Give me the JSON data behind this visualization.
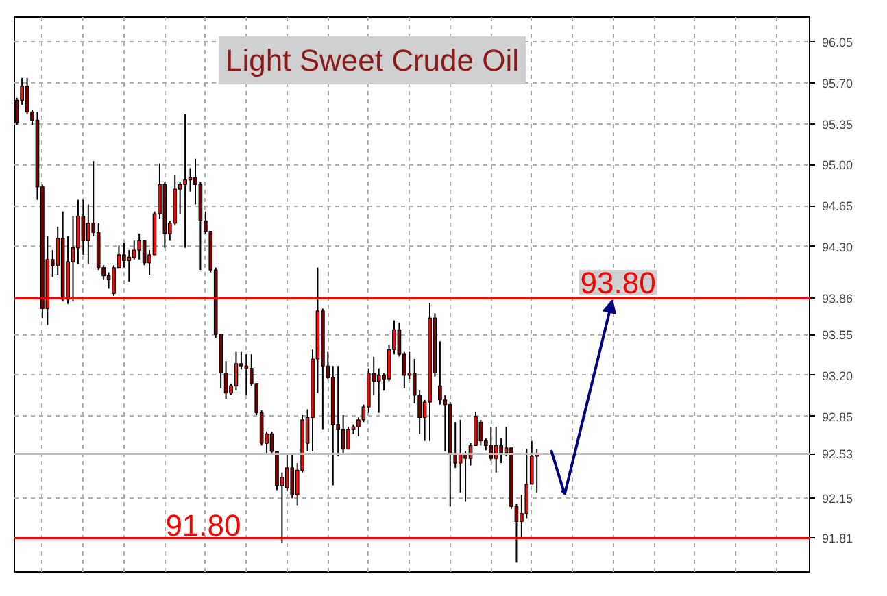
{
  "chart_data": {
    "type": "candlestick",
    "title": "Light Sweet Crude Oil",
    "categories": [
      null,
      null,
      null,
      null,
      null,
      null,
      null,
      null,
      null,
      null,
      null,
      null,
      null,
      null,
      null,
      null,
      null,
      null,
      null,
      null,
      null,
      null,
      null,
      null,
      null,
      null,
      null,
      null,
      null,
      null,
      null,
      null,
      null,
      null,
      null,
      null,
      null,
      null,
      null,
      null,
      null,
      null,
      null,
      null,
      null,
      null,
      null,
      null,
      null,
      null,
      null,
      null,
      null,
      null,
      null,
      null,
      null,
      null,
      null,
      null,
      null,
      null,
      null,
      null,
      null,
      null,
      null,
      null,
      null,
      null,
      null,
      null,
      null,
      null,
      null,
      null,
      null,
      null,
      null,
      null,
      null,
      null,
      null,
      null,
      null,
      null,
      null,
      null,
      null,
      null,
      null,
      null,
      null,
      null,
      null,
      null,
      null,
      null,
      null,
      null,
      null,
      null,
      null,
      null,
      null,
      null,
      null,
      null,
      null,
      null,
      null,
      null,
      null,
      null,
      null,
      null,
      null,
      null,
      null,
      null,
      null,
      null,
      null,
      null,
      null,
      null,
      null,
      null,
      null,
      null,
      null,
      null,
      null,
      null,
      null,
      null,
      null,
      null,
      null,
      null,
      null,
      null,
      null,
      null,
      null,
      null,
      null,
      null,
      null,
      null,
      null,
      null,
      null,
      null,
      null,
      null
    ],
    "ohlc": [
      [
        95.55,
        95.57,
        95.34,
        95.36
      ],
      [
        95.55,
        95.74,
        95.51,
        95.67
      ],
      [
        95.67,
        95.74,
        95.43,
        95.45
      ],
      [
        95.45,
        95.47,
        95.34,
        95.38
      ],
      [
        95.38,
        95.45,
        94.7,
        94.81
      ],
      [
        94.81,
        94.83,
        93.69,
        93.77
      ],
      [
        93.77,
        94.39,
        93.63,
        94.19
      ],
      [
        94.19,
        94.27,
        94.04,
        94.14
      ],
      [
        94.14,
        94.47,
        94.06,
        94.37
      ],
      [
        94.37,
        94.6,
        93.83,
        93.85
      ],
      [
        93.85,
        94.39,
        93.81,
        94.17
      ],
      [
        94.17,
        94.56,
        93.83,
        94.29
      ],
      [
        94.29,
        94.7,
        94.15,
        94.56
      ],
      [
        94.56,
        94.7,
        94.23,
        94.35
      ],
      [
        94.35,
        94.66,
        94.15,
        94.5
      ],
      [
        94.5,
        95.03,
        94.39,
        94.42
      ],
      [
        94.42,
        94.5,
        94.1,
        94.12
      ],
      [
        94.12,
        94.14,
        94.02,
        94.05
      ],
      [
        94.05,
        94.08,
        93.94,
        94.02
      ],
      [
        93.9,
        94.14,
        93.88,
        94.12
      ],
      [
        94.12,
        94.31,
        94.12,
        94.23
      ],
      [
        94.23,
        94.33,
        94.12,
        94.18
      ],
      [
        94.18,
        94.27,
        94.0,
        94.21
      ],
      [
        94.21,
        94.35,
        94.19,
        94.27
      ],
      [
        94.27,
        94.41,
        94.19,
        94.35
      ],
      [
        94.35,
        94.35,
        94.14,
        94.16
      ],
      [
        94.16,
        94.27,
        94.06,
        94.23
      ],
      [
        94.23,
        94.6,
        94.23,
        94.58
      ],
      [
        94.58,
        95.01,
        94.54,
        94.83
      ],
      [
        94.83,
        94.85,
        94.29,
        94.41
      ],
      [
        94.41,
        94.52,
        94.35,
        94.5
      ],
      [
        94.5,
        94.91,
        94.48,
        94.79
      ],
      [
        94.79,
        94.85,
        94.58,
        94.83
      ],
      [
        94.83,
        95.43,
        94.29,
        94.87
      ],
      [
        94.87,
        94.97,
        94.77,
        94.89
      ],
      [
        94.89,
        95.05,
        94.66,
        94.83
      ],
      [
        94.83,
        94.85,
        94.1,
        94.52
      ],
      [
        94.52,
        94.6,
        94.41,
        94.43
      ],
      [
        94.43,
        94.43,
        94.08,
        94.1
      ],
      [
        94.1,
        94.12,
        93.52,
        93.55
      ],
      [
        93.55,
        93.55,
        93.09,
        93.22
      ],
      [
        93.22,
        93.32,
        93.0,
        93.05
      ],
      [
        93.05,
        93.13,
        93.03,
        93.11
      ],
      [
        93.11,
        93.4,
        93.07,
        93.3
      ],
      [
        93.3,
        93.4,
        93.25,
        93.28
      ],
      [
        93.28,
        93.38,
        93.03,
        93.26
      ],
      [
        93.26,
        93.38,
        93.11,
        93.13
      ],
      [
        93.13,
        93.13,
        92.86,
        92.88
      ],
      [
        92.88,
        92.9,
        92.6,
        92.62
      ],
      [
        92.62,
        92.72,
        92.53,
        92.7
      ],
      [
        92.7,
        92.72,
        92.53,
        92.55
      ],
      [
        92.55,
        92.55,
        92.22,
        92.26
      ],
      [
        92.26,
        92.37,
        91.77,
        92.33
      ],
      [
        92.24,
        92.53,
        92.21,
        92.41
      ],
      [
        92.41,
        92.53,
        92.15,
        92.18
      ],
      [
        92.18,
        92.45,
        92.09,
        92.39
      ],
      [
        92.39,
        92.86,
        92.37,
        92.82
      ],
      [
        92.62,
        92.91,
        92.55,
        92.84
      ],
      [
        92.84,
        93.42,
        92.55,
        93.34
      ],
      [
        93.34,
        94.12,
        93.05,
        93.75
      ],
      [
        93.75,
        93.77,
        92.74,
        93.28
      ],
      [
        93.28,
        93.4,
        93.17,
        93.18
      ],
      [
        93.18,
        93.28,
        92.26,
        92.78
      ],
      [
        92.78,
        93.28,
        92.51,
        92.74
      ],
      [
        92.74,
        92.86,
        92.53,
        92.57
      ],
      [
        92.57,
        92.76,
        92.57,
        92.74
      ],
      [
        92.74,
        92.78,
        92.7,
        92.76
      ],
      [
        92.76,
        92.84,
        92.68,
        92.82
      ],
      [
        92.82,
        92.95,
        92.8,
        92.93
      ],
      [
        92.93,
        93.26,
        92.88,
        93.22
      ],
      [
        93.22,
        93.36,
        93.03,
        93.15
      ],
      [
        93.15,
        93.26,
        92.88,
        93.2
      ],
      [
        93.2,
        93.22,
        93.07,
        93.17
      ],
      [
        93.17,
        93.46,
        93.15,
        93.42
      ],
      [
        93.42,
        93.67,
        93.38,
        93.59
      ],
      [
        93.59,
        93.65,
        93.36,
        93.38
      ],
      [
        93.38,
        93.4,
        93.09,
        93.2
      ],
      [
        93.2,
        93.4,
        93.17,
        93.22
      ],
      [
        93.22,
        93.34,
        92.96,
        93.03
      ],
      [
        93.03,
        93.07,
        92.7,
        92.84
      ],
      [
        92.84,
        92.99,
        92.64,
        92.97
      ],
      [
        92.97,
        93.82,
        92.64,
        93.69
      ],
      [
        93.69,
        93.73,
        93.19,
        93.22
      ],
      [
        93.11,
        93.49,
        92.95,
        92.99
      ],
      [
        92.99,
        93.03,
        92.55,
        92.95
      ],
      [
        92.95,
        92.97,
        92.08,
        92.53
      ],
      [
        92.53,
        92.8,
        92.41,
        92.45
      ],
      [
        92.45,
        92.82,
        92.2,
        92.53
      ],
      [
        92.53,
        92.55,
        92.12,
        92.49
      ],
      [
        92.49,
        92.62,
        92.43,
        92.6
      ],
      [
        92.6,
        92.89,
        92.6,
        92.85
      ],
      [
        92.8,
        92.82,
        92.6,
        92.64
      ],
      [
        92.64,
        92.66,
        92.56,
        92.6
      ],
      [
        92.6,
        92.76,
        92.47,
        92.49
      ],
      [
        92.49,
        92.76,
        92.37,
        92.6
      ],
      [
        92.6,
        92.66,
        92.45,
        92.54
      ],
      [
        92.54,
        92.76,
        92.51,
        92.58
      ],
      [
        92.58,
        92.58,
        92.06,
        92.08
      ],
      [
        92.08,
        92.1,
        91.6,
        91.95
      ],
      [
        91.95,
        92.18,
        91.81,
        92.02
      ],
      [
        92.02,
        92.57,
        91.98,
        92.27
      ],
      [
        92.27,
        92.64,
        92.27,
        92.51
      ],
      [
        92.51,
        92.57,
        92.2,
        92.53
      ],
      null,
      null,
      null,
      null,
      null,
      null,
      null,
      null,
      null,
      null,
      null,
      null,
      null,
      null,
      null,
      null,
      null,
      null,
      null,
      null,
      null,
      null,
      null,
      null,
      null,
      null,
      null,
      null,
      null,
      null,
      null,
      null,
      null,
      null,
      null,
      null,
      null,
      null,
      null,
      null,
      null,
      null,
      null,
      null,
      null,
      null,
      null,
      null,
      null,
      null,
      null,
      null,
      null
    ],
    "ylim": [
      91.52,
      96.26
    ],
    "yticks": [
      {
        "value": 96.05,
        "label": "96.05"
      },
      {
        "value": 95.7,
        "label": "95.70"
      },
      {
        "value": 95.35,
        "label": "95.35"
      },
      {
        "value": 95.0,
        "label": "95.00"
      },
      {
        "value": 94.65,
        "label": "94.65"
      },
      {
        "value": 94.3,
        "label": "94.30"
      },
      {
        "value": 93.55,
        "label": "93.55"
      },
      {
        "value": 93.2,
        "label": "93.20"
      },
      {
        "value": 92.85,
        "label": "92.85"
      },
      {
        "value": 92.15,
        "label": "92.15"
      }
    ],
    "ref_lines": [
      {
        "axis": "y",
        "value": 93.86,
        "label": "93.86",
        "color": "#ff0000"
      },
      {
        "axis": "y",
        "value": 92.53,
        "label": "92.53",
        "color": "#c0c0c0"
      },
      {
        "axis": "y",
        "value": 91.81,
        "label": "91.81",
        "color": "#ff0000"
      }
    ],
    "annotations": [
      "93.80",
      "91.80"
    ],
    "grid": true
  }
}
